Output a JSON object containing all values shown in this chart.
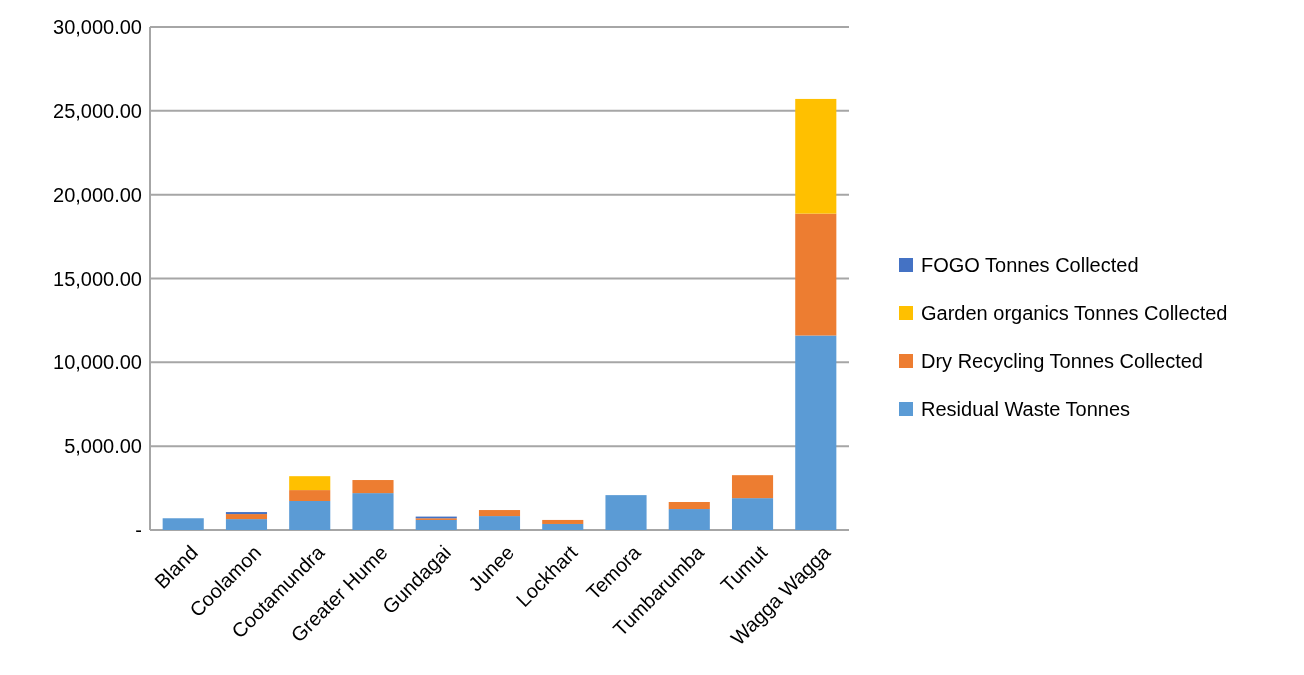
{
  "chart_data": {
    "type": "bar",
    "stacked": true,
    "categories": [
      "Bland",
      "Coolamon",
      "Cootamundra",
      "Greater Hume",
      "Gundagai",
      "Junee",
      "Lockhart",
      "Temora",
      "Tumbarumba",
      "Tumut",
      "Wagga Wagga"
    ],
    "series": [
      {
        "name": "Residual Waste Tonnes",
        "color": "#5b9bd5",
        "values": [
          700,
          650,
          1730,
          2200,
          600,
          830,
          360,
          2080,
          1250,
          1900,
          11600
        ]
      },
      {
        "name": "Dry Recycling Tonnes Collected",
        "color": "#ed7d31",
        "values": [
          null,
          300,
          650,
          780,
          100,
          360,
          240,
          null,
          420,
          1370,
          7270
        ]
      },
      {
        "name": "Garden organics Tonnes Collected",
        "color": "#ffc000",
        "values": [
          null,
          null,
          830,
          null,
          null,
          null,
          null,
          null,
          null,
          null,
          6840
        ]
      },
      {
        "name": "FOGO Tonnes Collected",
        "color": "#4472c4",
        "values": [
          null,
          120,
          null,
          null,
          100,
          null,
          null,
          null,
          null,
          null,
          null
        ]
      }
    ],
    "ylim": [
      0,
      30000
    ],
    "yticks": [
      {
        "value": 0,
        "label": "-"
      },
      {
        "value": 5000,
        "label": "5,000.00"
      },
      {
        "value": 10000,
        "label": "10,000.00"
      },
      {
        "value": 15000,
        "label": "15,000.00"
      },
      {
        "value": 20000,
        "label": "20,000.00"
      },
      {
        "value": 25000,
        "label": "25,000.00"
      },
      {
        "value": 30000,
        "label": "30,000.00"
      }
    ],
    "grid": true,
    "legend": "right"
  }
}
